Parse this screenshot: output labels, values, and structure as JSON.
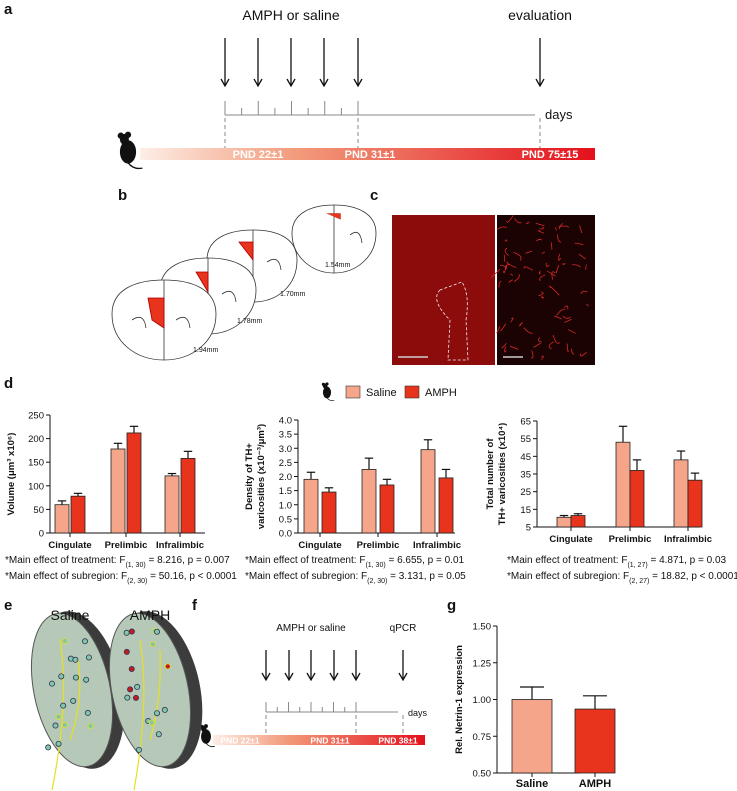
{
  "panels": {
    "labels": [
      "a",
      "b",
      "c",
      "d",
      "e",
      "f",
      "g"
    ],
    "timeline_a": {
      "arrow_label": "AMPH or saline",
      "end_label": "evaluation",
      "axis_label": "days",
      "marks": [
        "PND 22±1",
        "PND 31±1",
        "PND 75±15"
      ]
    },
    "timeline_f": {
      "arrow_label": "AMPH or saline",
      "end_label": "qPCR",
      "axis_label": "days",
      "marks": [
        "PND 22±1",
        "PND 31±1",
        "PND 38±1"
      ]
    },
    "slices_b": [
      "1.94mm",
      "1.78mm",
      "1.70mm",
      "1.54mm"
    ],
    "titles_e": [
      "Saline",
      "AMPH"
    ]
  },
  "chart_data": [
    {
      "type": "bar",
      "ylabel": [
        "Volume (μm³ x10⁶)"
      ],
      "categories": [
        "Cingulate",
        "Prelimbic",
        "Infralimbic"
      ],
      "series": [
        {
          "name": "Saline",
          "color": "#f4a58a",
          "values": [
            60,
            178,
            121
          ],
          "errors": [
            8,
            12,
            5
          ]
        },
        {
          "name": "AMPH",
          "color": "#e8341c",
          "values": [
            78,
            212,
            158
          ],
          "errors": [
            6,
            14,
            15
          ]
        }
      ],
      "ylim": [
        0,
        250
      ],
      "yticks": [
        0,
        50,
        100,
        150,
        200,
        250
      ],
      "notes": [
        [
          "*Main effect of treatment: F",
          "(1, 30)",
          " = 8.216, p = 0.007"
        ],
        [
          "*Main effect of subregion: F",
          "(2, 30)",
          " = 50.16, p < 0.0001"
        ]
      ]
    },
    {
      "type": "bar",
      "ylabel": [
        "Density of TH+",
        "varicosities (x10⁻³/μm³)"
      ],
      "categories": [
        "Cingulate",
        "Prelimbic",
        "Infralimbic"
      ],
      "series": [
        {
          "color": "#f4a58a",
          "values": [
            1.9,
            2.25,
            2.95
          ],
          "errors": [
            0.25,
            0.4,
            0.35
          ]
        },
        {
          "color": "#e8341c",
          "values": [
            1.45,
            1.7,
            1.95
          ],
          "errors": [
            0.15,
            0.2,
            0.3
          ]
        }
      ],
      "ylim": [
        0,
        4
      ],
      "yticks": [
        {
          "value": 0,
          "label": "0.0"
        },
        0.5,
        {
          "value": 1,
          "label": "1.0"
        },
        1.5,
        {
          "value": 2,
          "label": "2.0"
        },
        2.5,
        {
          "value": 3,
          "label": "3.0"
        },
        3.5,
        {
          "value": 4,
          "label": "4.0"
        }
      ],
      "notes": [
        [
          "*Main effect of treatment: F",
          "(1, 30)",
          " = 6.655, p = 0.01"
        ],
        [
          "*Main effect of subregion: F",
          "(2, 30)",
          " = 3.131, p = 0.05"
        ]
      ]
    },
    {
      "type": "bar",
      "ylabel": [
        "Total number of",
        "TH+ varicosities (x10⁴)"
      ],
      "categories": [
        "Cingulate",
        "Prelimbic",
        "Infralimbic"
      ],
      "series": [
        {
          "color": "#f4a58a",
          "values": [
            10.5,
            53,
            43
          ],
          "errors": [
            1,
            9,
            5
          ]
        },
        {
          "color": "#e8341c",
          "values": [
            11.5,
            37,
            31.5
          ],
          "errors": [
            1,
            6,
            4
          ]
        }
      ],
      "ylim": [
        5,
        65
      ],
      "yticks": [
        5,
        15,
        25,
        35,
        45,
        55,
        65
      ],
      "notes": [
        [
          "*Main effect of treatment: F",
          "(1, 27)",
          " = 4.871, p = 0.03"
        ],
        [
          "*Main effect of subregion: F",
          "(2, 27)",
          " = 18.82, p < 0.0001"
        ]
      ]
    },
    {
      "type": "bar",
      "ylabel": [
        "Rel. Netrin-1 expression"
      ],
      "categories": [
        "Saline",
        "AMPH"
      ],
      "series": [
        {
          "colors": [
            "#f4a58a",
            "#e8341c"
          ],
          "values": [
            1.0,
            0.935
          ],
          "errors": [
            0.085,
            0.09
          ]
        }
      ],
      "ylim": [
        0.5,
        1.5
      ],
      "yticks": [
        {
          "value": 0.5,
          "label": "0.50"
        },
        0.75,
        {
          "value": 1,
          "label": "1.00"
        },
        {
          "value": 1.25,
          "label": "1.25"
        },
        {
          "value": 1.5,
          "label": "1.50"
        }
      ]
    }
  ]
}
